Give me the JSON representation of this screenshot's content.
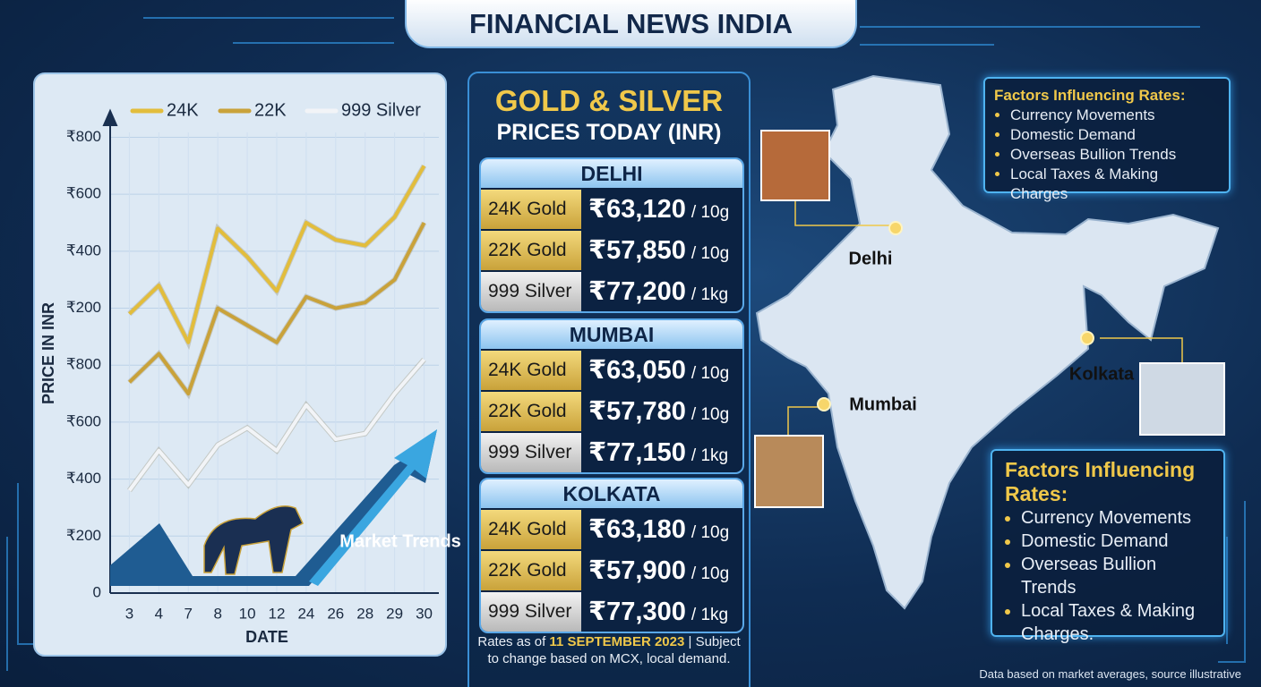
{
  "title": "FINANCIAL NEWS INDIA",
  "chart_data": {
    "type": "line",
    "ylabel": "PRICE IN INR",
    "xlabel": "DATE",
    "annotation": "Market Trends",
    "categories": [
      "3",
      "4",
      "7",
      "8",
      "10",
      "12",
      "24",
      "26",
      "28",
      "29",
      "30"
    ],
    "series": [
      {
        "name": "24K",
        "color": "#e2bd3c",
        "values": [
          4.9,
          5.4,
          4.4,
          6.4,
          5.9,
          5.3,
          6.5,
          6.2,
          6.1,
          6.6,
          7.5
        ]
      },
      {
        "name": "22K",
        "color": "#c9a23a",
        "values": [
          3.7,
          4.2,
          3.5,
          5.0,
          4.7,
          4.4,
          5.2,
          5.0,
          5.1,
          5.5,
          6.5
        ]
      },
      {
        "name": "999 Silver",
        "color": "#f2f4f7",
        "values": [
          1.8,
          2.5,
          1.9,
          2.6,
          2.9,
          2.5,
          3.3,
          2.7,
          2.8,
          3.5,
          4.1
        ]
      }
    ],
    "ylim": [
      0,
      8.4
    ],
    "yticks": [
      {
        "value": 0,
        "label": "0"
      },
      {
        "value": 1,
        "label": "₹200"
      },
      {
        "value": 2,
        "label": "₹400"
      },
      {
        "value": 3,
        "label": "₹600"
      },
      {
        "value": 4,
        "label": "₹800"
      },
      {
        "value": 5,
        "label": "₹200"
      },
      {
        "value": 6,
        "label": "₹400"
      },
      {
        "value": 7,
        "label": "₹600"
      },
      {
        "value": 8,
        "label": "₹800"
      }
    ],
    "grid": true
  },
  "prices": {
    "title": "GOLD & SILVER",
    "subtitle": "PRICES TODAY (INR)",
    "cities": [
      {
        "city": "DELHI",
        "rows": [
          {
            "label": "24K Gold",
            "price": "₹63,120",
            "unit": "/ 10g"
          },
          {
            "label": "22K Gold",
            "price": "₹57,850",
            "unit": "/ 10g"
          },
          {
            "label": "999 Silver",
            "price": "₹77,200",
            "unit": "/ 1kg"
          }
        ]
      },
      {
        "city": "MUMBAI",
        "rows": [
          {
            "label": "24K Gold",
            "price": "₹63,050",
            "unit": "/ 10g"
          },
          {
            "label": "22K Gold",
            "price": "₹57,780",
            "unit": "/ 10g"
          },
          {
            "label": "999 Silver",
            "price": "₹77,150",
            "unit": "/ 1kg"
          }
        ]
      },
      {
        "city": "KOLKATA",
        "rows": [
          {
            "label": "24K Gold",
            "price": "₹63,180",
            "unit": "/ 10g"
          },
          {
            "label": "22K Gold",
            "price": "₹57,900",
            "unit": "/ 10g"
          },
          {
            "label": "999 Silver",
            "price": "₹77,300",
            "unit": "/ 1kg"
          }
        ]
      }
    ],
    "note": [
      "Rates as of ",
      "11 SEPTEMBER 2023",
      " | Subject to change based on MCX, local demand."
    ]
  },
  "map": {
    "labels": [
      "Delhi",
      "Mumbai",
      "Kolkata"
    ]
  },
  "factors_top": {
    "title": "Factors Influencing Rates:",
    "items": [
      "Currency Movements",
      "Domestic Demand",
      "Overseas Bullion Trends",
      "Local Taxes & Making Charges"
    ]
  },
  "factors_bottom": {
    "title": "Factors Influencing Rates:",
    "items": [
      "Currency Movements",
      "Domestic Demand",
      "Overseas Bullion Trends",
      "Local Taxes & Making Charges."
    ]
  },
  "footnote": "Data based on market averages, source illustrative"
}
